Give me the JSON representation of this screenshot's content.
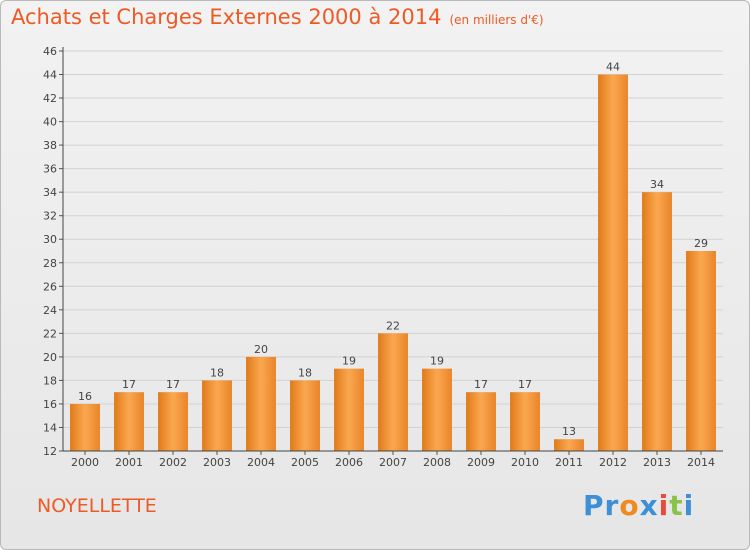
{
  "header": {
    "title": "Achats et Charges Externes 2000 à 2014",
    "subtitle": "(en milliers d'€)"
  },
  "footer": {
    "commune": "NOYELLETTE",
    "brand_letters": [
      "P",
      "r",
      "o",
      "x",
      "i",
      "t",
      "i"
    ]
  },
  "colors": {
    "accent": "#ee5a24",
    "bar_light": "#f9a24d",
    "bar_dark": "#e07b1a",
    "brand": [
      "#3d8fd6",
      "#3d8fd6",
      "#f08a1e",
      "#3d8fd6",
      "#e84a3c",
      "#8bc34a",
      "#3d8fd6"
    ]
  },
  "chart_data": {
    "type": "bar",
    "categories": [
      "2000",
      "2001",
      "2002",
      "2003",
      "2004",
      "2005",
      "2006",
      "2007",
      "2008",
      "2009",
      "2010",
      "2011",
      "2012",
      "2013",
      "2014"
    ],
    "values": [
      16,
      17,
      17,
      18,
      20,
      18,
      19,
      22,
      19,
      17,
      17,
      13,
      44,
      34,
      29
    ],
    "yticks": [
      12,
      14,
      16,
      18,
      20,
      22,
      24,
      26,
      28,
      30,
      32,
      34,
      36,
      38,
      40,
      42,
      44,
      46
    ],
    "ylim": [
      12,
      46
    ],
    "grid": true,
    "data_labels": true
  }
}
